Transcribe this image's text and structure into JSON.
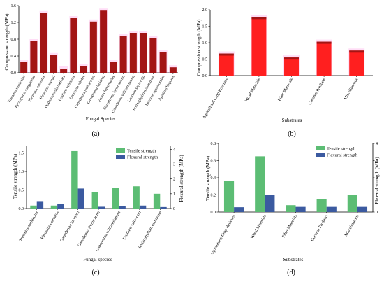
{
  "colors": {
    "compression": "#ff1f1f",
    "compression_dark": "#a31515",
    "tensile": "#5cbd74",
    "flexural": "#3b5aa0",
    "halo": "#ff9de6"
  },
  "chart_data": [
    {
      "type": "bar",
      "panel": "(a)",
      "xlabel": "Fungal Species",
      "ylabel": "Compression strength (MPa)",
      "ylim": [
        0.0,
        1.6
      ],
      "yticks": [
        "0.0",
        "0.4",
        "0.8",
        "1.2",
        "1.6"
      ],
      "categories": [
        "Trametes versicolor",
        "Pycnoporus sanguineus",
        "Pleurotus ostreatus",
        "Pleurotus eryngii",
        "Oudemansiella radicata",
        "Lentinus velutinus",
        "Lentinula edodes",
        "Ganoderma resinaceum",
        "Ganoderma lucidum",
        "Fomes fomentarius",
        "Ganoderma formosanum",
        "Ganoderma williamsianum",
        "Lentinus sajor-caju",
        "Schizophyllum commune",
        "Lentinus squarrosulus",
        "Agaricus bisporus"
      ],
      "values": [
        0.25,
        0.75,
        1.42,
        0.42,
        0.1,
        1.3,
        0.15,
        1.22,
        1.48,
        0.25,
        0.88,
        0.95,
        0.95,
        0.82,
        0.5,
        0.13
      ]
    },
    {
      "type": "bar",
      "panel": "(b)",
      "xlabel": "Substrates",
      "ylabel": "Compression strength (MPa)",
      "ylim": [
        0.0,
        2.0
      ],
      "yticks": [
        "0.0",
        "0.5",
        "1.0",
        "1.5",
        "2.0"
      ],
      "categories": [
        "Agricultural Crop Residues",
        "Wood Materials",
        "Fiber Materials",
        "Coconut Products",
        "Miscellaneous"
      ],
      "values": [
        0.67,
        1.78,
        0.55,
        1.03,
        0.76
      ]
    },
    {
      "type": "bar",
      "panel": "(c)",
      "xlabel": "Fungal species",
      "ylabel": "Tensile strength (MPa)",
      "ylabel_right": "Flexural strength (MPa)",
      "ylim": [
        0.0,
        1.7
      ],
      "yticks": [
        "0.0",
        "0.5",
        "1.0",
        "1.5"
      ],
      "ylim_right": [
        0,
        4.25
      ],
      "yticks_right": [
        "0",
        "1",
        "2",
        "3",
        "4"
      ],
      "categories": [
        "Trametes multicolor",
        "Pleurotus ostreatus",
        "Ganoderma lucidum",
        "Ganoderma formicatum",
        "Ganoderma williamsianum",
        "Lentinus sajor-caju",
        "Schizophyllum commune"
      ],
      "series": [
        {
          "name": "Tensile strength",
          "axis": "left",
          "values": [
            0.08,
            0.08,
            1.55,
            0.45,
            0.55,
            0.6,
            0.4
          ]
        },
        {
          "name": "Flexural strength",
          "axis": "right",
          "values": [
            0.5,
            0.3,
            1.35,
            0.12,
            0.18,
            0.2,
            0.1
          ]
        }
      ]
    },
    {
      "type": "bar",
      "panel": "(d)",
      "xlabel": "Substrates",
      "ylabel": "Tensile strength (MPa)",
      "ylabel_right": "Flexural strength (MPa)",
      "ylim": [
        0.0,
        0.8
      ],
      "yticks": [
        "0.0",
        "0.2",
        "0.4",
        "0.6",
        "0.8"
      ],
      "ylim_right": [
        0,
        4.0
      ],
      "yticks_right": [
        "0",
        "1",
        "2",
        "3",
        "4"
      ],
      "categories": [
        "Agricultural Crop Residues",
        "Wood Materials",
        "Fiber Materials",
        "Coconut Products",
        "Miscellaneous"
      ],
      "series": [
        {
          "name": "Tensile strength",
          "axis": "left",
          "values": [
            0.36,
            0.65,
            0.08,
            0.15,
            0.2
          ]
        },
        {
          "name": "Flexural strength",
          "axis": "right",
          "values": [
            0.28,
            1.0,
            0.3,
            0.3,
            0.3
          ]
        }
      ]
    }
  ]
}
